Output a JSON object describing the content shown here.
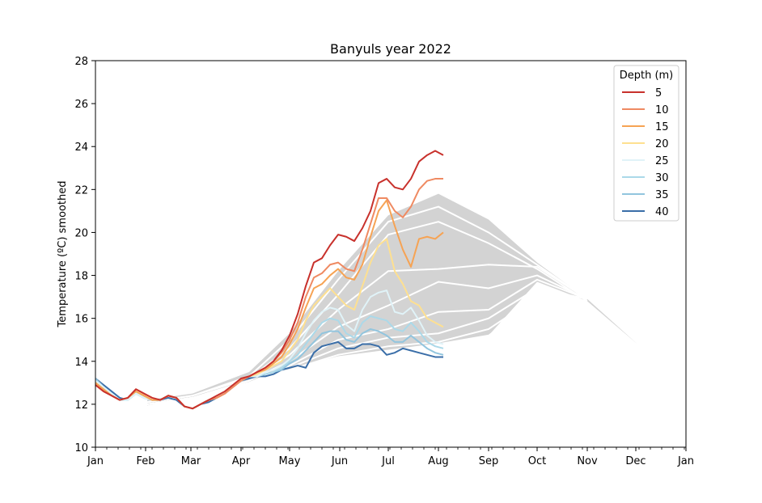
{
  "chart_data": {
    "type": "line",
    "title": "Banyuls year 2022",
    "xlabel": "",
    "ylabel": "Temperature (ºC) smoothed",
    "x_tick_labels": [
      "Jan",
      "Feb",
      "Mar",
      "Apr",
      "May",
      "Jun",
      "Jul",
      "Aug",
      "Sep",
      "Oct",
      "Nov",
      "Dec",
      "Jan"
    ],
    "x_tick_days": [
      0,
      31,
      59,
      90,
      120,
      151,
      181,
      212,
      243,
      273,
      304,
      334,
      365
    ],
    "xlim": [
      0,
      365
    ],
    "ylim": [
      10,
      28
    ],
    "y_ticks": [
      10,
      12,
      14,
      16,
      18,
      20,
      22,
      24,
      26,
      28
    ],
    "legend": {
      "title": "Depth (m)",
      "placement": "top-right"
    },
    "climatology_envelope": {
      "color": "#d3d3d3",
      "x": [
        32,
        60,
        95,
        120,
        150,
        181,
        212,
        243,
        273,
        304,
        335
      ],
      "upper": [
        12.2,
        12.5,
        13.5,
        15.3,
        18.2,
        20.8,
        21.8,
        20.6,
        18.6,
        16.9,
        14.8
      ],
      "lower": [
        11.9,
        12.3,
        13.0,
        13.6,
        14.2,
        14.5,
        14.8,
        15.2,
        17.7,
        16.8,
        14.8
      ]
    },
    "climatology_lines": {
      "color": "#ffffff",
      "x": [
        32,
        60,
        95,
        120,
        150,
        181,
        212,
        243,
        273,
        304
      ],
      "series": [
        [
          12.1,
          12.4,
          13.3,
          15.0,
          17.8,
          20.5,
          21.2,
          20.0,
          18.5,
          16.9
        ],
        [
          12.1,
          12.4,
          13.2,
          14.6,
          17.1,
          19.9,
          20.5,
          19.5,
          18.3,
          16.8
        ],
        [
          12.0,
          12.3,
          13.1,
          14.3,
          16.4,
          18.2,
          18.3,
          18.5,
          18.4,
          16.9
        ],
        [
          12.0,
          12.3,
          13.1,
          14.0,
          15.6,
          16.6,
          17.7,
          17.4,
          18.0,
          16.9
        ],
        [
          12.0,
          12.3,
          13.0,
          13.8,
          15.0,
          15.5,
          16.3,
          16.4,
          17.8,
          16.9
        ],
        [
          12.0,
          12.3,
          13.0,
          13.7,
          14.6,
          15.1,
          15.3,
          16.0,
          17.4,
          16.9
        ],
        [
          11.9,
          12.3,
          13.0,
          13.6,
          14.3,
          14.7,
          14.9,
          15.5,
          17.0,
          16.8
        ],
        [
          11.9,
          12.3,
          13.0,
          13.6,
          14.2,
          14.5,
          14.8,
          15.2,
          16.8,
          16.8
        ]
      ]
    },
    "x": [
      0,
      5,
      10,
      15,
      20,
      25,
      30,
      35,
      40,
      45,
      50,
      55,
      60,
      65,
      70,
      75,
      80,
      85,
      90,
      95,
      100,
      105,
      110,
      115,
      120,
      125,
      130,
      135,
      140,
      145,
      150,
      155,
      160,
      165,
      170,
      175,
      180,
      185,
      190,
      195,
      200,
      205,
      210,
      215
    ],
    "series": [
      {
        "name": "5",
        "color": "#c8312c",
        "values": [
          12.9,
          12.6,
          12.4,
          12.2,
          12.3,
          12.7,
          12.5,
          12.3,
          12.2,
          12.4,
          12.3,
          11.9,
          11.8,
          12.0,
          12.2,
          12.4,
          12.6,
          12.9,
          13.2,
          13.3,
          13.5,
          13.7,
          14.0,
          14.5,
          15.2,
          16.2,
          17.5,
          18.6,
          18.8,
          19.4,
          19.9,
          19.8,
          19.6,
          20.2,
          21.0,
          22.3,
          22.5,
          22.1,
          22.0,
          22.5,
          23.3,
          23.6,
          23.8,
          23.6
        ]
      },
      {
        "name": "10",
        "color": "#ef8a62",
        "values": [
          12.9,
          12.6,
          12.4,
          12.2,
          12.3,
          12.7,
          12.5,
          12.3,
          12.2,
          12.4,
          12.3,
          11.9,
          11.8,
          12.0,
          12.2,
          12.3,
          12.5,
          12.8,
          13.1,
          13.3,
          13.5,
          13.7,
          14.0,
          14.4,
          15.0,
          15.8,
          17.0,
          17.9,
          18.1,
          18.5,
          18.6,
          18.3,
          18.2,
          19.2,
          20.4,
          21.6,
          21.6,
          21.0,
          20.7,
          21.2,
          22.0,
          22.4,
          22.5,
          22.5
        ]
      },
      {
        "name": "15",
        "color": "#f6a354",
        "values": [
          13.0,
          12.7,
          12.4,
          12.2,
          12.3,
          12.6,
          12.4,
          12.2,
          12.2,
          12.4,
          12.3,
          11.9,
          11.8,
          12.0,
          12.2,
          12.3,
          12.5,
          12.8,
          13.1,
          13.3,
          13.5,
          13.6,
          13.9,
          14.2,
          14.8,
          15.5,
          16.5,
          17.4,
          17.6,
          18.0,
          18.3,
          17.9,
          17.8,
          18.5,
          19.8,
          21.0,
          21.5,
          20.3,
          19.2,
          18.4,
          19.7,
          19.8,
          19.7,
          20.0
        ]
      },
      {
        "name": "20",
        "color": "#fee090",
        "values": [
          13.0,
          12.7,
          12.4,
          12.2,
          12.3,
          12.6,
          12.4,
          12.2,
          12.2,
          12.4,
          12.3,
          11.9,
          11.8,
          12.0,
          12.2,
          12.3,
          12.5,
          12.8,
          13.1,
          13.3,
          13.4,
          13.6,
          13.8,
          14.0,
          14.5,
          15.0,
          15.9,
          16.6,
          17.0,
          17.4,
          17.0,
          16.6,
          16.4,
          17.5,
          18.6,
          19.4,
          19.7,
          18.2,
          17.6,
          16.8,
          16.6,
          16.0,
          15.8,
          15.6
        ]
      },
      {
        "name": "25",
        "color": "#e0f3f8",
        "values": [
          13.1,
          12.8,
          12.5,
          12.2,
          12.2,
          12.5,
          12.3,
          12.2,
          12.2,
          12.4,
          12.3,
          11.9,
          11.8,
          12.0,
          12.2,
          12.3,
          12.5,
          12.8,
          13.1,
          13.3,
          13.3,
          13.5,
          13.6,
          13.8,
          14.1,
          14.6,
          15.3,
          15.9,
          16.3,
          16.5,
          16.4,
          15.7,
          15.4,
          16.4,
          17.0,
          17.2,
          17.3,
          16.3,
          16.2,
          16.5,
          15.9,
          15.2,
          14.9,
          14.8
        ]
      },
      {
        "name": "30",
        "color": "#abd9e9",
        "values": [
          13.1,
          12.8,
          12.5,
          12.2,
          12.2,
          12.5,
          12.3,
          12.2,
          12.2,
          12.4,
          12.3,
          11.9,
          11.8,
          12.0,
          12.2,
          12.3,
          12.5,
          12.8,
          13.1,
          13.3,
          13.3,
          13.4,
          13.5,
          13.7,
          14.0,
          14.3,
          14.8,
          15.3,
          15.8,
          16.0,
          15.9,
          15.3,
          15.1,
          15.8,
          16.1,
          16.0,
          15.9,
          15.5,
          15.4,
          15.8,
          15.4,
          14.9,
          14.7,
          14.6
        ]
      },
      {
        "name": "35",
        "color": "#92c5de",
        "values": [
          13.2,
          12.8,
          12.5,
          12.2,
          12.2,
          12.5,
          12.3,
          12.2,
          12.2,
          12.4,
          12.3,
          11.9,
          11.8,
          12.0,
          12.2,
          12.3,
          12.5,
          12.8,
          13.1,
          13.3,
          13.3,
          13.4,
          13.5,
          13.6,
          13.9,
          14.1,
          14.5,
          14.9,
          15.3,
          15.4,
          15.4,
          15.0,
          14.9,
          15.3,
          15.5,
          15.4,
          15.2,
          14.9,
          14.9,
          15.2,
          14.9,
          14.6,
          14.4,
          14.3
        ]
      },
      {
        "name": "40",
        "color": "#3a6ea8",
        "values": [
          13.2,
          12.9,
          12.6,
          12.3,
          12.2,
          12.5,
          12.3,
          12.2,
          12.2,
          12.3,
          12.2,
          11.9,
          11.8,
          12.0,
          12.1,
          12.3,
          12.5,
          12.8,
          13.1,
          13.2,
          13.3,
          13.3,
          13.4,
          13.6,
          13.7,
          13.8,
          13.7,
          14.4,
          14.7,
          14.8,
          14.9,
          14.6,
          14.6,
          14.8,
          14.8,
          14.7,
          14.3,
          14.4,
          14.6,
          14.5,
          14.4,
          14.3,
          14.2,
          14.2
        ]
      }
    ]
  }
}
